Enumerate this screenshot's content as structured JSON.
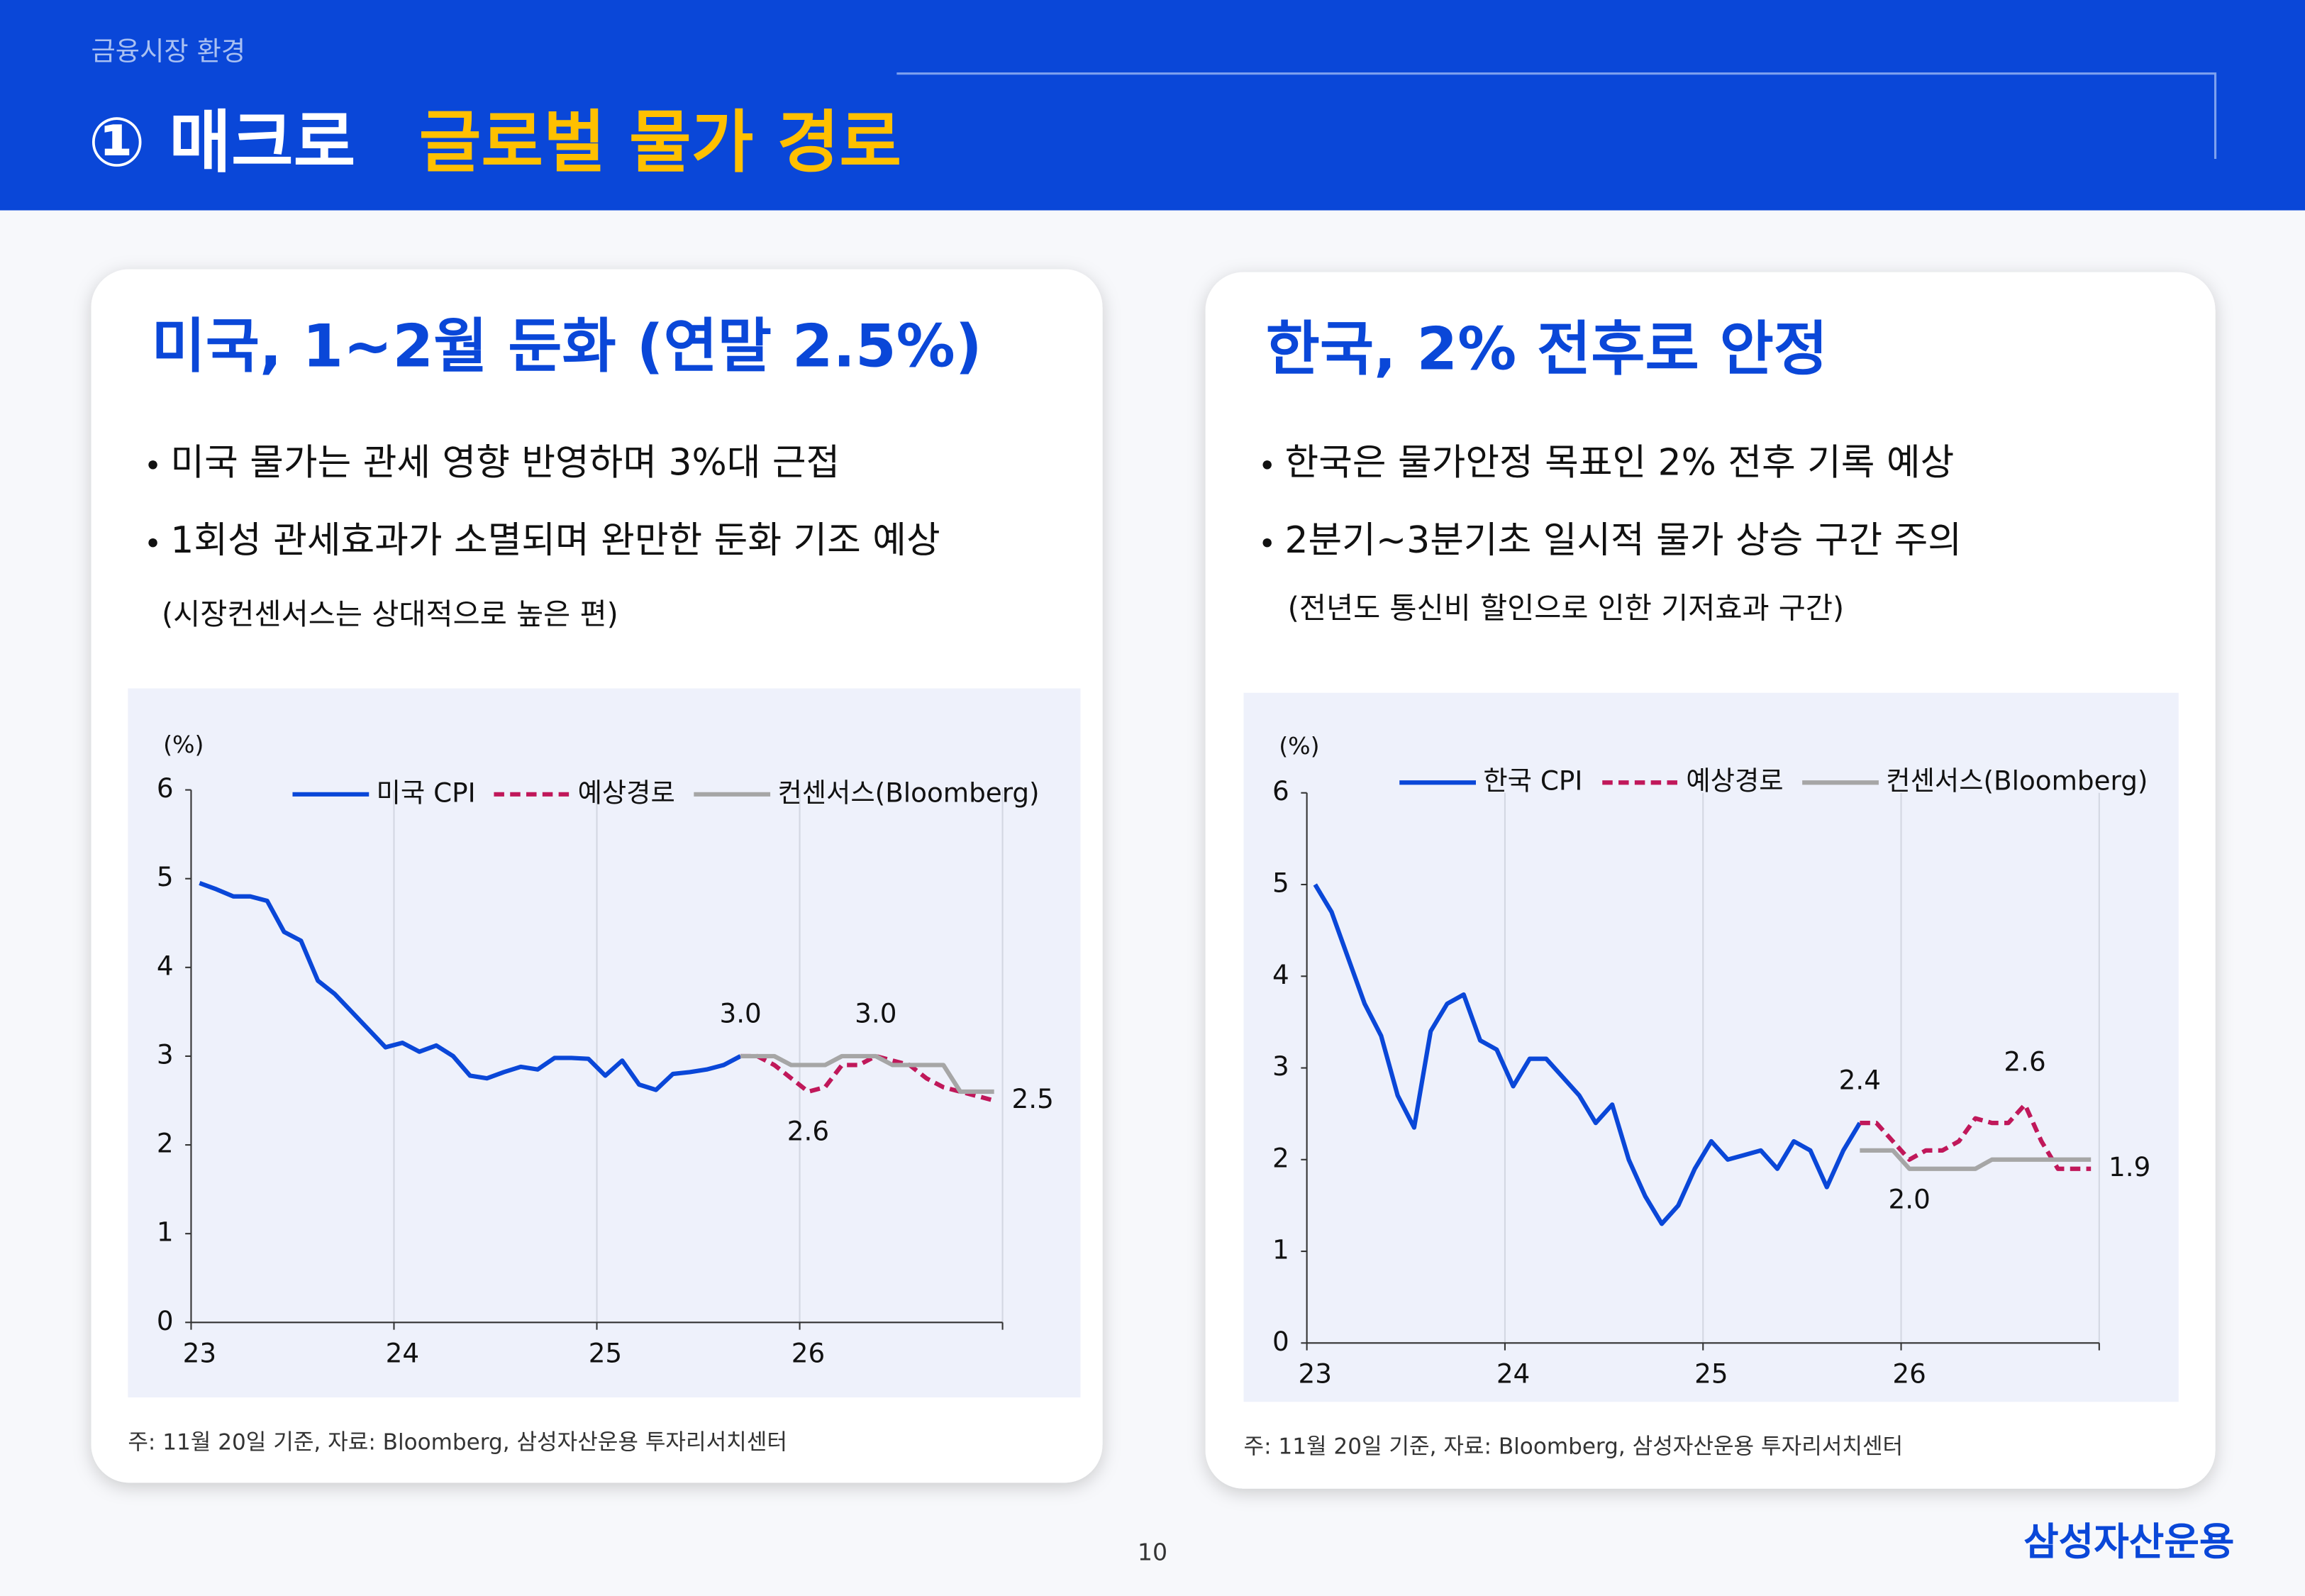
{
  "header": {
    "section": "금융시장 환경",
    "title": "① 매크로",
    "highlight": "글로벌 물가 경로"
  },
  "panels": [
    {
      "heading": "미국, 1~2월 둔화 (연말 2.5%)",
      "bullets": [
        "미국 물가는 관세 영향 반영하며 3%대 근접",
        "1회성 관세효과가 소멸되며 완만한 둔화 기조 예상"
      ],
      "note": "(시장컨센서스는 상대적으로 높은 편)",
      "footnote": "주: 11월 20일 기준, 자료: Bloomberg, 삼성자산운용 투자리서치센터"
    },
    {
      "heading": "한국, 2% 전후로 안정",
      "bullets": [
        "한국은 물가안정 목표인 2% 전후 기록 예상",
        "2분기~3분기초 일시적 물가 상승 구간 주의"
      ],
      "note": "(전년도 통신비 할인으로 인한 기저효과 구간)",
      "footnote": "주: 11월 20일 기준, 자료: Bloomberg, 삼성자산운용 투자리서치센터"
    }
  ],
  "page_number": "10",
  "logo": "삼성자산운용",
  "chart_data": [
    {
      "type": "line",
      "ylabel": "(%)",
      "categories": [
        "23",
        null,
        null,
        null,
        null,
        null,
        null,
        null,
        null,
        null,
        null,
        null,
        "24",
        null,
        null,
        null,
        null,
        null,
        null,
        null,
        null,
        null,
        null,
        null,
        "25",
        null,
        null,
        null,
        null,
        null,
        null,
        null,
        null,
        null,
        null,
        null,
        "26",
        null,
        null,
        null,
        null,
        null,
        null,
        null,
        null,
        null,
        null,
        null
      ],
      "ylim": [
        0,
        6
      ],
      "yticks": [
        0,
        1,
        2,
        3,
        4,
        5,
        6
      ],
      "xgrid": true,
      "series": [
        {
          "name": "미국 CPI",
          "color": "#0a47d8",
          "line_style": "solid",
          "values": [
            4.95,
            4.88,
            4.8,
            4.8,
            4.75,
            4.4,
            4.3,
            3.85,
            3.7,
            3.5,
            3.3,
            3.1,
            3.15,
            3.05,
            3.12,
            3.0,
            2.78,
            2.75,
            2.82,
            2.88,
            2.85,
            2.98,
            2.98,
            2.97,
            2.78,
            2.95,
            2.68,
            2.62,
            2.8,
            2.82,
            2.85,
            2.9,
            3.0,
            null,
            null,
            null,
            null,
            null,
            null,
            null,
            null,
            null,
            null,
            null,
            null,
            null,
            null,
            null
          ]
        },
        {
          "name": "예상경로",
          "color": "#c0185a",
          "line_style": "dashed",
          "values": [
            null,
            null,
            null,
            null,
            null,
            null,
            null,
            null,
            null,
            null,
            null,
            null,
            null,
            null,
            null,
            null,
            null,
            null,
            null,
            null,
            null,
            null,
            null,
            null,
            null,
            null,
            null,
            null,
            null,
            null,
            null,
            null,
            3.0,
            3.0,
            2.9,
            2.75,
            2.6,
            2.65,
            2.9,
            2.9,
            3.0,
            2.95,
            2.9,
            2.75,
            2.65,
            2.6,
            2.55,
            2.5
          ],
          "value_labels": [
            null,
            null,
            null,
            null,
            null,
            null,
            null,
            null,
            null,
            null,
            null,
            null,
            null,
            null,
            null,
            null,
            null,
            null,
            null,
            null,
            null,
            null,
            null,
            null,
            null,
            null,
            null,
            null,
            null,
            null,
            null,
            null,
            "3.0",
            null,
            null,
            null,
            "2.6",
            null,
            null,
            null,
            "3.0",
            null,
            null,
            null,
            null,
            null,
            null,
            "2.5"
          ]
        },
        {
          "name": "컨센서스(Bloomberg)",
          "color": "#a6a6a6",
          "line_style": "solid",
          "values": [
            null,
            null,
            null,
            null,
            null,
            null,
            null,
            null,
            null,
            null,
            null,
            null,
            null,
            null,
            null,
            null,
            null,
            null,
            null,
            null,
            null,
            null,
            null,
            null,
            null,
            null,
            null,
            null,
            null,
            null,
            null,
            null,
            3.0,
            3.0,
            3.0,
            2.9,
            2.9,
            2.9,
            3.0,
            3.0,
            3.0,
            2.9,
            2.9,
            2.9,
            2.9,
            2.6,
            2.6,
            2.6
          ]
        }
      ]
    },
    {
      "type": "line",
      "ylabel": "(%)",
      "categories": [
        "23",
        null,
        null,
        null,
        null,
        null,
        null,
        null,
        null,
        null,
        null,
        null,
        "24",
        null,
        null,
        null,
        null,
        null,
        null,
        null,
        null,
        null,
        null,
        null,
        "25",
        null,
        null,
        null,
        null,
        null,
        null,
        null,
        null,
        null,
        null,
        null,
        "26",
        null,
        null,
        null,
        null,
        null,
        null,
        null,
        null,
        null,
        null,
        null
      ],
      "ylim": [
        0,
        6
      ],
      "yticks": [
        0,
        1,
        2,
        3,
        4,
        5,
        6
      ],
      "xgrid": true,
      "series": [
        {
          "name": "한국 CPI",
          "color": "#0a47d8",
          "line_style": "solid",
          "values": [
            5.0,
            4.7,
            4.2,
            3.7,
            3.35,
            2.7,
            2.35,
            3.4,
            3.7,
            3.8,
            3.3,
            3.2,
            2.8,
            3.1,
            3.1,
            2.9,
            2.7,
            2.4,
            2.6,
            2.0,
            1.6,
            1.3,
            1.5,
            1.9,
            2.2,
            2.0,
            2.05,
            2.1,
            1.9,
            2.2,
            2.1,
            1.7,
            2.1,
            2.4,
            null,
            null,
            null,
            null,
            null,
            null,
            null,
            null,
            null,
            null,
            null,
            null,
            null,
            null
          ]
        },
        {
          "name": "예상경로",
          "color": "#c0185a",
          "line_style": "dashed",
          "values": [
            null,
            null,
            null,
            null,
            null,
            null,
            null,
            null,
            null,
            null,
            null,
            null,
            null,
            null,
            null,
            null,
            null,
            null,
            null,
            null,
            null,
            null,
            null,
            null,
            null,
            null,
            null,
            null,
            null,
            null,
            null,
            null,
            null,
            2.4,
            2.4,
            2.2,
            2.0,
            2.1,
            2.1,
            2.2,
            2.45,
            2.4,
            2.4,
            2.6,
            2.2,
            1.9,
            1.9,
            1.9
          ],
          "value_labels": [
            null,
            null,
            null,
            null,
            null,
            null,
            null,
            null,
            null,
            null,
            null,
            null,
            null,
            null,
            null,
            null,
            null,
            null,
            null,
            null,
            null,
            null,
            null,
            null,
            null,
            null,
            null,
            null,
            null,
            null,
            null,
            null,
            null,
            "2.4",
            null,
            null,
            "2.0",
            null,
            null,
            null,
            null,
            null,
            null,
            "2.6",
            null,
            null,
            null,
            "1.9"
          ]
        },
        {
          "name": "컨센서스(Bloomberg)",
          "color": "#a6a6a6",
          "line_style": "solid",
          "values": [
            null,
            null,
            null,
            null,
            null,
            null,
            null,
            null,
            null,
            null,
            null,
            null,
            null,
            null,
            null,
            null,
            null,
            null,
            null,
            null,
            null,
            null,
            null,
            null,
            null,
            null,
            null,
            null,
            null,
            null,
            null,
            null,
            null,
            2.1,
            2.1,
            2.1,
            1.9,
            1.9,
            1.9,
            1.9,
            1.9,
            2.0,
            2.0,
            2.0,
            2.0,
            2.0,
            2.0,
            2.0
          ]
        }
      ]
    }
  ]
}
